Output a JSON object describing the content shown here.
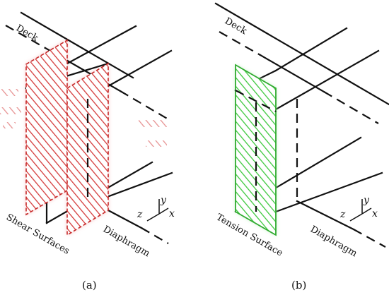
{
  "panel_a": {
    "deck_label": "Deck",
    "surface_label": "Shear Surfaces",
    "diaphragm_label": "Diaphragm",
    "caption": "(a)",
    "hatch_color": "#d43a3a",
    "glow_color": "#f6c4c4"
  },
  "panel_b": {
    "deck_label": "Deck",
    "surface_label": "Tension Surface",
    "diaphragm_label": "Diaphragm",
    "caption": "(b)",
    "hatch_color": "#3cc83c",
    "glow_color": "#c4f0c4"
  },
  "axes": {
    "x": "x",
    "y": "y",
    "z": "z"
  }
}
